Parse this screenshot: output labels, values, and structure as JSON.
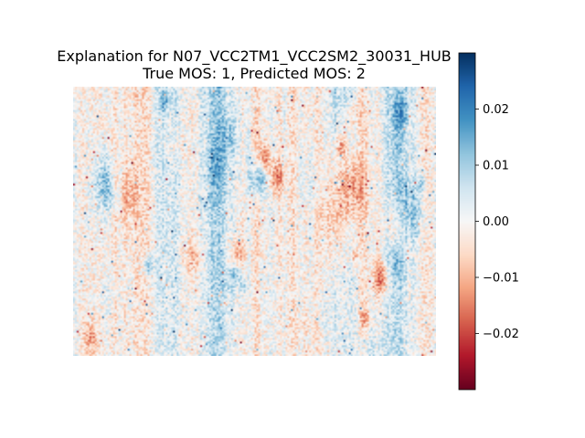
{
  "chart_data": {
    "type": "heatmap",
    "title_lines": [
      "Explanation for N07_VCC2TM1_VCC2SM2_30031_HUB",
      "True MOS: 1, Predicted MOS: 2"
    ],
    "colormap": "RdBu",
    "colorbar": {
      "range": [
        -0.03,
        0.03
      ],
      "ticks": [
        0.02,
        0.01,
        0.0,
        -0.01,
        -0.02
      ],
      "tick_labels": [
        "0.02",
        "0.01",
        "0.00",
        "−0.01",
        "−0.02"
      ]
    },
    "axes_visible": false,
    "grid_resolution": {
      "cols": 200,
      "rows": 150
    }
  },
  "colors": {
    "negative_extreme": "#67001f",
    "neutral": "#f7f7f7",
    "positive_extreme": "#053061"
  }
}
